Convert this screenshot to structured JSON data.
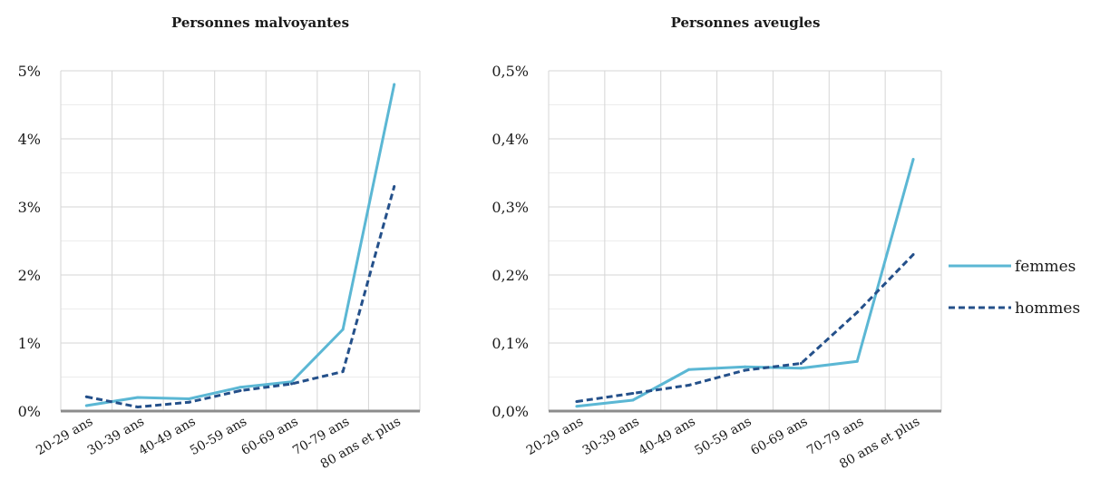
{
  "legend": {
    "entries": [
      {
        "label": "femmes",
        "color": "#5bb7d4",
        "style": "solid"
      },
      {
        "label": "hommes",
        "color": "#24508a",
        "style": "dashed"
      }
    ]
  },
  "chart_data": [
    {
      "type": "line",
      "title": "Personnes malvoyantes",
      "categories": [
        "20-29 ans",
        "30-39 ans",
        "40-49 ans",
        "50-59 ans",
        "60-69 ans",
        "70-79 ans",
        "80 ans et plus"
      ],
      "y_ticks": [
        "0%",
        "1%",
        "2%",
        "3%",
        "4%",
        "5%"
      ],
      "ylim": [
        0,
        5
      ],
      "y_unit": "%",
      "grid": true,
      "series": [
        {
          "name": "femmes",
          "values": [
            0.08,
            0.2,
            0.18,
            0.35,
            0.43,
            1.2,
            4.8
          ]
        },
        {
          "name": "hommes",
          "values": [
            0.21,
            0.06,
            0.13,
            0.3,
            0.4,
            0.58,
            3.3
          ]
        }
      ]
    },
    {
      "type": "line",
      "title": "Personnes aveugles",
      "categories": [
        "20-29 ans",
        "30-39 ans",
        "40-49 ans",
        "50-59 ans",
        "60-69 ans",
        "70-79 ans",
        "80 ans et plus"
      ],
      "y_ticks": [
        "0,0%",
        "0,1%",
        "0,2%",
        "0,3%",
        "0,4%",
        "0,5%"
      ],
      "ylim": [
        0,
        0.5
      ],
      "y_unit": "%",
      "grid": true,
      "series": [
        {
          "name": "femmes",
          "values": [
            0.007,
            0.016,
            0.061,
            0.065,
            0.063,
            0.073,
            0.37
          ]
        },
        {
          "name": "hommes",
          "values": [
            0.014,
            0.026,
            0.038,
            0.06,
            0.07,
            0.145,
            0.23
          ]
        }
      ]
    }
  ]
}
